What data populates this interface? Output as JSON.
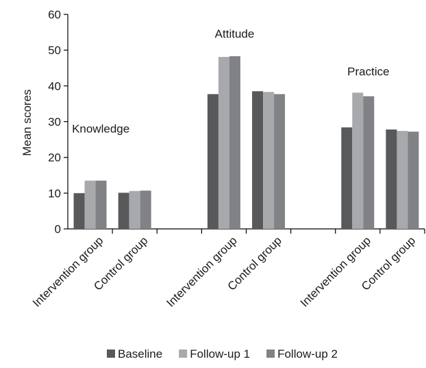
{
  "chart_data": {
    "type": "bar",
    "ylabel": "Mean scores",
    "xlabel": "",
    "ylim": [
      0,
      60
    ],
    "yticks": [
      0,
      10,
      20,
      30,
      40,
      50,
      60
    ],
    "grid": false,
    "legend_position": "bottom",
    "categories": [
      "Intervention group",
      "Control group",
      "",
      "Intervention group",
      "Control group",
      "",
      "Intervention group",
      "Control group"
    ],
    "group_labels": [
      {
        "text": "Knowledge",
        "category_index": 0
      },
      {
        "text": "Attitude",
        "category_index": 3
      },
      {
        "text": "Practice",
        "category_index": 6
      }
    ],
    "series": [
      {
        "name": "Baseline",
        "color": "#58595b",
        "values": [
          10.0,
          10.1,
          null,
          37.7,
          38.5,
          null,
          28.4,
          27.8
        ]
      },
      {
        "name": "Follow-up 1",
        "color": "#a7a9ac",
        "values": [
          13.5,
          10.6,
          null,
          48.1,
          38.3,
          null,
          38.1,
          27.4
        ]
      },
      {
        "name": "Follow-up 2",
        "color": "#808285",
        "values": [
          13.5,
          10.7,
          null,
          48.3,
          37.7,
          null,
          37.1,
          27.2
        ]
      }
    ]
  }
}
